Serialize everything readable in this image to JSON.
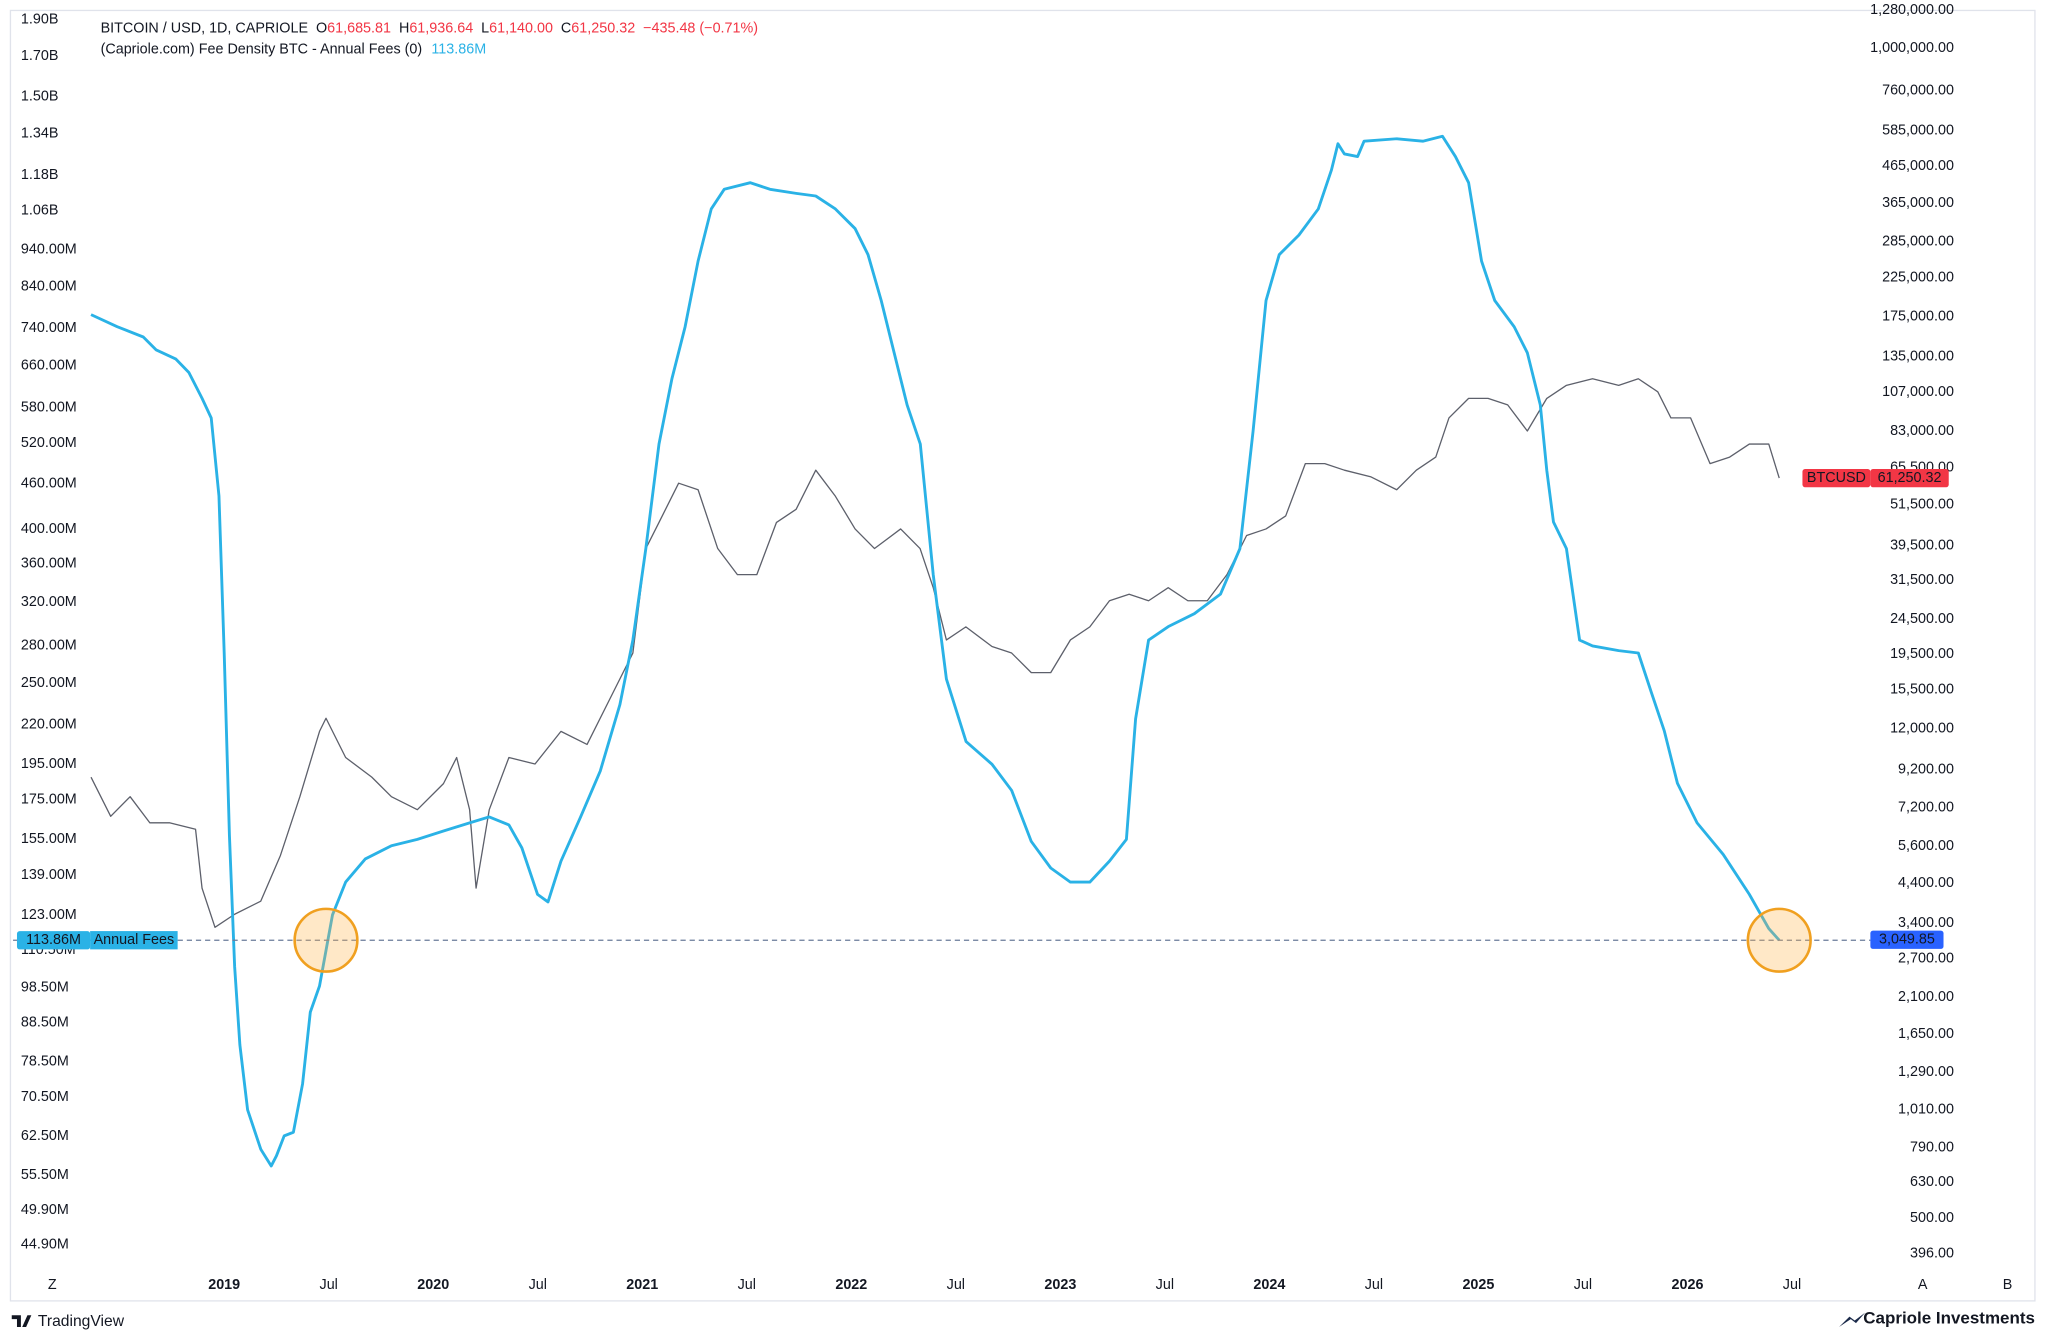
{
  "chart_data": {
    "type": "line",
    "header": {
      "symbol": "BITCOIN / USD, 1D, CAPRIOLE",
      "open_letter": "O",
      "open": "61,685.81",
      "high_letter": "H",
      "high": "61,936.64",
      "low_letter": "L",
      "low": "61,140.00",
      "close_letter": "C",
      "close": "61,250.32",
      "change": "−435.48 (−0.71%)",
      "indicator": "(Capriole.com) Fee Density BTC - Annual Fees (0)",
      "indicator_value": "113.86M"
    },
    "log_scale": true,
    "grid": false,
    "xlim": [
      2017.99,
      2026.8
    ],
    "xticks": [
      2019,
      {
        "value": 2019.5,
        "label": "Jul"
      },
      2020,
      {
        "value": 2020.5,
        "label": "Jul"
      },
      2021,
      {
        "value": 2021.5,
        "label": "Jul"
      },
      2022,
      {
        "value": 2022.5,
        "label": "Jul"
      },
      2023,
      {
        "value": 2023.5,
        "label": "Jul"
      },
      2024,
      {
        "value": 2024.5,
        "label": "Jul"
      },
      2025,
      {
        "value": 2025.5,
        "label": "Jul"
      },
      2026,
      {
        "value": 2026.5,
        "label": "Jul"
      }
    ],
    "ylim": [
      41600000,
      1954000000
    ],
    "yticks": [
      {
        "value": 1900000000,
        "label": "1.90B"
      },
      {
        "value": 1700000000,
        "label": "1.70B"
      },
      {
        "value": 1500000000,
        "label": "1.50B"
      },
      {
        "value": 1340000000,
        "label": "1.34B"
      },
      {
        "value": 1180000000,
        "label": "1.18B"
      },
      {
        "value": 1060000000,
        "label": "1.06B"
      },
      {
        "value": 940000000,
        "label": "940.00M"
      },
      {
        "value": 840000000,
        "label": "840.00M"
      },
      {
        "value": 740000000,
        "label": "740.00M"
      },
      {
        "value": 660000000,
        "label": "660.00M"
      },
      {
        "value": 580000000,
        "label": "580.00M"
      },
      {
        "value": 520000000,
        "label": "520.00M"
      },
      {
        "value": 460000000,
        "label": "460.00M"
      },
      {
        "value": 400000000,
        "label": "400.00M"
      },
      {
        "value": 360000000,
        "label": "360.00M"
      },
      {
        "value": 320000000,
        "label": "320.00M"
      },
      {
        "value": 280000000,
        "label": "280.00M"
      },
      {
        "value": 250000000,
        "label": "250.00M"
      },
      {
        "value": 220000000,
        "label": "220.00M"
      },
      {
        "value": 195000000,
        "label": "195.00M"
      },
      {
        "value": 175000000,
        "label": "175.00M"
      },
      {
        "value": 155000000,
        "label": "155.00M"
      },
      {
        "value": 139000000,
        "label": "139.00M"
      },
      {
        "value": 123000000,
        "label": "123.00M"
      },
      {
        "value": 110500000,
        "label": "110.50M"
      },
      {
        "value": 98500000,
        "label": "98.50M"
      },
      {
        "value": 88500000,
        "label": "88.50M"
      },
      {
        "value": 78500000,
        "label": "78.50M"
      },
      {
        "value": 70500000,
        "label": "70.50M"
      },
      {
        "value": 62500000,
        "label": "62.50M"
      },
      {
        "value": 55500000,
        "label": "55.50M"
      },
      {
        "value": 49900000,
        "label": "49.90M"
      },
      {
        "value": 44900000,
        "label": "44.90M"
      }
    ],
    "y2lim": [
      357.6,
      1279000
    ],
    "y2ticks": [
      {
        "value": 1280000,
        "label": "1,280,000.00"
      },
      {
        "value": 1000000,
        "label": "1,000,000.00"
      },
      {
        "value": 760000,
        "label": "760,000.00"
      },
      {
        "value": 585000,
        "label": "585,000.00"
      },
      {
        "value": 465000,
        "label": "465,000.00"
      },
      {
        "value": 365000,
        "label": "365,000.00"
      },
      {
        "value": 285000,
        "label": "285,000.00"
      },
      {
        "value": 225000,
        "label": "225,000.00"
      },
      {
        "value": 175000,
        "label": "175,000.00"
      },
      {
        "value": 135000,
        "label": "135,000.00"
      },
      {
        "value": 107000,
        "label": "107,000.00"
      },
      {
        "value": 83000,
        "label": "83,000.00"
      },
      {
        "value": 65500,
        "label": "65,500.00"
      },
      {
        "value": 51500,
        "label": "51,500.00"
      },
      {
        "value": 39500,
        "label": "39,500.00"
      },
      {
        "value": 31500,
        "label": "31,500.00"
      },
      {
        "value": 24500,
        "label": "24,500.00"
      },
      {
        "value": 19500,
        "label": "19,500.00"
      },
      {
        "value": 15500,
        "label": "15,500.00"
      },
      {
        "value": 12000,
        "label": "12,000.00"
      },
      {
        "value": 9200,
        "label": "9,200.00"
      },
      {
        "value": 7200,
        "label": "7,200.00"
      },
      {
        "value": 5600,
        "label": "5,600.00"
      },
      {
        "value": 4400,
        "label": "4,400.00"
      },
      {
        "value": 3400,
        "label": "3,400.00"
      },
      {
        "value": 2700,
        "label": "2,700.00"
      },
      {
        "value": 2100,
        "label": "2,100.00"
      },
      {
        "value": 1650,
        "label": "1,650.00"
      },
      {
        "value": 1290,
        "label": "1,290.00"
      },
      {
        "value": 1010,
        "label": "1,010.00"
      },
      {
        "value": 790,
        "label": "790.00"
      },
      {
        "value": 630,
        "label": "630.00"
      },
      {
        "value": 500,
        "label": "500.00"
      },
      {
        "value": 396,
        "label": "396.00"
      }
    ],
    "series": [
      {
        "name": "BTCUSD",
        "color": "#5d606b",
        "axis": "y2",
        "x": [
          2018.363,
          2018.457,
          2018.55,
          2018.644,
          2018.738,
          2018.863,
          2018.894,
          2018.956,
          2019.05,
          2019.175,
          2019.269,
          2019.362,
          2019.456,
          2019.487,
          2019.581,
          2019.706,
          2019.8,
          2019.924,
          2020.049,
          2020.112,
          2020.174,
          2020.205,
          2020.268,
          2020.362,
          2020.487,
          2020.611,
          2020.736,
          2020.861,
          2020.955,
          2021.017,
          2021.08,
          2021.174,
          2021.267,
          2021.361,
          2021.455,
          2021.548,
          2021.642,
          2021.736,
          2021.83,
          2021.924,
          2022.018,
          2022.111,
          2022.236,
          2022.329,
          2022.392,
          2022.455,
          2022.548,
          2022.673,
          2022.767,
          2022.861,
          2022.954,
          2023.048,
          2023.141,
          2023.235,
          2023.329,
          2023.422,
          2023.516,
          2023.61,
          2023.703,
          2023.797,
          2023.891,
          2023.984,
          2024.078,
          2024.172,
          2024.265,
          2024.359,
          2024.484,
          2024.609,
          2024.703,
          2024.796,
          2024.859,
          2024.953,
          2025.046,
          2025.14,
          2025.234,
          2025.327,
          2025.421,
          2025.546,
          2025.671,
          2025.765,
          2025.858,
          2025.921,
          2026.015,
          2026.108,
          2026.202,
          2026.296,
          2026.389,
          2026.439
        ],
        "values": [
          8772,
          6802,
          7726,
          6520,
          6520,
          6250,
          4265,
          3306,
          3599,
          3918,
          5273,
          7726,
          11810,
          12860,
          9965,
          8772,
          7726,
          7099,
          8410,
          9965,
          7099,
          4265,
          7099,
          9965,
          9553,
          11810,
          10850,
          15230,
          19650,
          38750,
          45920,
          59250,
          56780,
          38750,
          32700,
          32700,
          45920,
          50000,
          64470,
          54420,
          44010,
          38750,
          44010,
          38750,
          30040,
          21390,
          23290,
          20500,
          19650,
          17300,
          17300,
          21390,
          23290,
          27600,
          28800,
          27600,
          30040,
          27600,
          27600,
          32700,
          42180,
          44010,
          47900,
          67290,
          67290,
          64470,
          61800,
          56780,
          64470,
          70200,
          90560,
          102800,
          102800,
          98560,
          83180,
          102800,
          111900,
          116800,
          111900,
          116800,
          107300,
          90560,
          90560,
          67290,
          70200,
          76410,
          76410,
          61250.32
        ]
      },
      {
        "name": "Annual Fees",
        "color": "#2ab2e6",
        "axis": "y",
        "x": [
          2018.363,
          2018.488,
          2018.613,
          2018.675,
          2018.769,
          2018.831,
          2018.894,
          2018.938,
          2018.975,
          2019.0,
          2019.025,
          2019.05,
          2019.075,
          2019.112,
          2019.175,
          2019.225,
          2019.25,
          2019.287,
          2019.331,
          2019.375,
          2019.412,
          2019.456,
          2019.518,
          2019.581,
          2019.675,
          2019.8,
          2019.924,
          2020.049,
          2020.174,
          2020.268,
          2020.362,
          2020.424,
          2020.499,
          2020.549,
          2020.611,
          2020.705,
          2020.799,
          2020.893,
          2020.955,
          2021.017,
          2021.08,
          2021.142,
          2021.205,
          2021.267,
          2021.33,
          2021.392,
          2021.517,
          2021.611,
          2021.736,
          2021.83,
          2021.924,
          2022.018,
          2022.08,
          2022.143,
          2022.205,
          2022.267,
          2022.33,
          2022.392,
          2022.455,
          2022.549,
          2022.673,
          2022.767,
          2022.861,
          2022.954,
          2023.048,
          2023.141,
          2023.235,
          2023.316,
          2023.36,
          2023.422,
          2023.516,
          2023.641,
          2023.766,
          2023.859,
          2023.922,
          2023.984,
          2024.047,
          2024.141,
          2024.234,
          2024.297,
          2024.328,
          2024.359,
          2024.422,
          2024.453,
          2024.609,
          2024.734,
          2024.828,
          2024.89,
          2024.953,
          2025.015,
          2025.078,
          2025.171,
          2025.234,
          2025.296,
          2025.327,
          2025.359,
          2025.421,
          2025.484,
          2025.546,
          2025.671,
          2025.765,
          2025.827,
          2025.889,
          2025.952,
          2026.046,
          2026.171,
          2026.296,
          2026.389,
          2026.439
        ],
        "values": [
          771000000,
          743000000,
          720000000,
          692000000,
          673000000,
          646000000,
          597000000,
          562000000,
          443000000,
          274000000,
          157000000,
          105000000,
          82700000,
          67800000,
          60100000,
          57100000,
          58900000,
          62600000,
          63300000,
          73400000,
          91400000,
          99000000,
          123000000,
          136000000,
          146000000,
          152000000,
          155000000,
          159000000,
          163000000,
          166000000,
          162000000,
          151000000,
          131000000,
          128000000,
          145000000,
          166000000,
          191000000,
          234000000,
          285000000,
          377000000,
          519000000,
          634000000,
          743000000,
          908000000,
          1065000000,
          1131000000,
          1154000000,
          1131000000,
          1117000000,
          1108000000,
          1065000000,
          1003000000,
          926000000,
          805000000,
          686000000,
          585000000,
          519000000,
          348000000,
          253000000,
          209000000,
          195000000,
          180000000,
          154000000,
          142000000,
          136000000,
          136000000,
          145000000,
          155000000,
          224000000,
          285000000,
          297000000,
          309000000,
          328000000,
          377000000,
          540000000,
          805000000,
          926000000,
          983000000,
          1065000000,
          1200000000,
          1300000000,
          1260000000,
          1250000000,
          1310000000,
          1320000000,
          1310000000,
          1330000000,
          1250000000,
          1154000000,
          908000000,
          805000000,
          743000000,
          686000000,
          585000000,
          479000000,
          409000000,
          377000000,
          285000000,
          280000000,
          276000000,
          274000000,
          243000000,
          216000000,
          184000000,
          163000000,
          148000000,
          131000000,
          118000000,
          113860000
        ]
      }
    ],
    "price_tag": {
      "value": 61250.32,
      "label": "61,250.32"
    },
    "level_line": {
      "value": 113860000,
      "label": "113.86M",
      "y2_value": 3049.85,
      "y2_label": "3,049.85"
    },
    "highlights": [
      {
        "x": 2019.487,
        "value": 113860000
      },
      {
        "x": 2026.439,
        "value": 113860000
      }
    ],
    "toolbar": {
      "zoom": "Z",
      "auto": "A",
      "bars": "B"
    },
    "footer": {
      "platform": "TradingView",
      "brand": "Capriole Investments"
    }
  }
}
